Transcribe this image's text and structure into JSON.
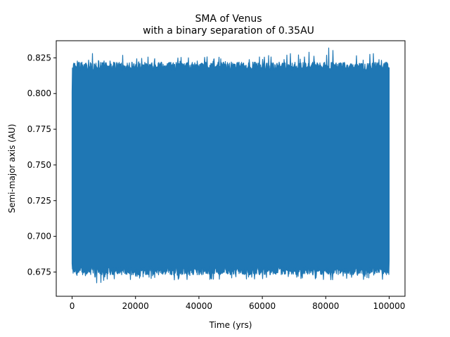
{
  "chart_data": {
    "type": "line",
    "title": "SMA of Venus",
    "subtitle": "with a binary separation of 0.35AU",
    "xlabel": "Time (yrs)",
    "ylabel": "Semi-major axis (AU)",
    "xlim": [
      -5000,
      105000
    ],
    "ylim": [
      0.658,
      0.837
    ],
    "xticks": [
      0,
      20000,
      40000,
      60000,
      80000,
      100000
    ],
    "xtick_labels": [
      "0",
      "20000",
      "40000",
      "60000",
      "80000",
      "100000"
    ],
    "yticks": [
      0.675,
      0.7,
      0.725,
      0.75,
      0.775,
      0.8,
      0.825
    ],
    "ytick_labels": [
      "0.675",
      "0.700",
      "0.725",
      "0.750",
      "0.775",
      "0.800",
      "0.825"
    ],
    "grid": false,
    "series": [
      {
        "color": "#1f77b4",
        "x_range": [
          0,
          100000
        ],
        "typical_min": 0.673,
        "typical_max": 0.822,
        "extreme_min": 0.666,
        "extreme_max": 0.834,
        "x": [
          0,
          800,
          4500,
          8000,
          20000,
          35000,
          50000,
          65000,
          80000,
          92000,
          97000,
          99000,
          100000
        ],
        "y_max": [
          0.832,
          0.822,
          0.834,
          0.829,
          0.826,
          0.826,
          0.827,
          0.827,
          0.833,
          0.831,
          0.828,
          0.822,
          0.818
        ],
        "y_min": [
          0.681,
          0.671,
          0.672,
          0.667,
          0.67,
          0.669,
          0.67,
          0.67,
          0.669,
          0.669,
          0.67,
          0.666,
          0.683
        ]
      }
    ]
  }
}
